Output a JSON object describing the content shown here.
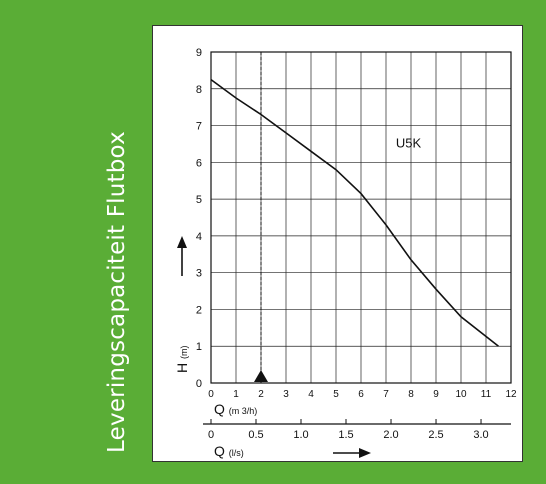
{
  "side_title": "Leveringscapaciteit Flutbox",
  "colors": {
    "background": "#5aad36",
    "panel": "#ffffff",
    "ink": "#111111"
  },
  "chart_data": {
    "type": "line",
    "title": "",
    "series": [
      {
        "name": "U5K",
        "x": [
          0,
          1,
          2,
          3,
          4,
          5,
          6,
          7,
          8,
          9,
          10,
          11.5
        ],
        "y": [
          8.25,
          7.75,
          7.3,
          6.8,
          6.3,
          5.8,
          5.15,
          4.3,
          3.35,
          2.55,
          1.8,
          1.0
        ]
      }
    ],
    "xlabel": "Q",
    "xunit": "(m 3/h)",
    "x_ticks": [
      "0",
      "1",
      "2",
      "3",
      "4",
      "5",
      "6",
      "7",
      "8",
      "9",
      "10",
      "11",
      "12"
    ],
    "xlim": [
      0,
      12
    ],
    "ylabel": "H",
    "yunit": "(m)",
    "y_ticks": [
      "0",
      "1",
      "2",
      "3",
      "4",
      "5",
      "6",
      "7",
      "8",
      "9"
    ],
    "ylim": [
      0,
      9
    ],
    "secondary_xlabel": "Q",
    "secondary_xunit": "(l/s)",
    "secondary_x_ticks": [
      "0",
      "0.5",
      "1.0",
      "1.5",
      "2.0",
      "2.5",
      "3.0"
    ],
    "secondary_xlim": [
      0,
      3.333
    ],
    "marker_x": 2,
    "grid": true
  }
}
